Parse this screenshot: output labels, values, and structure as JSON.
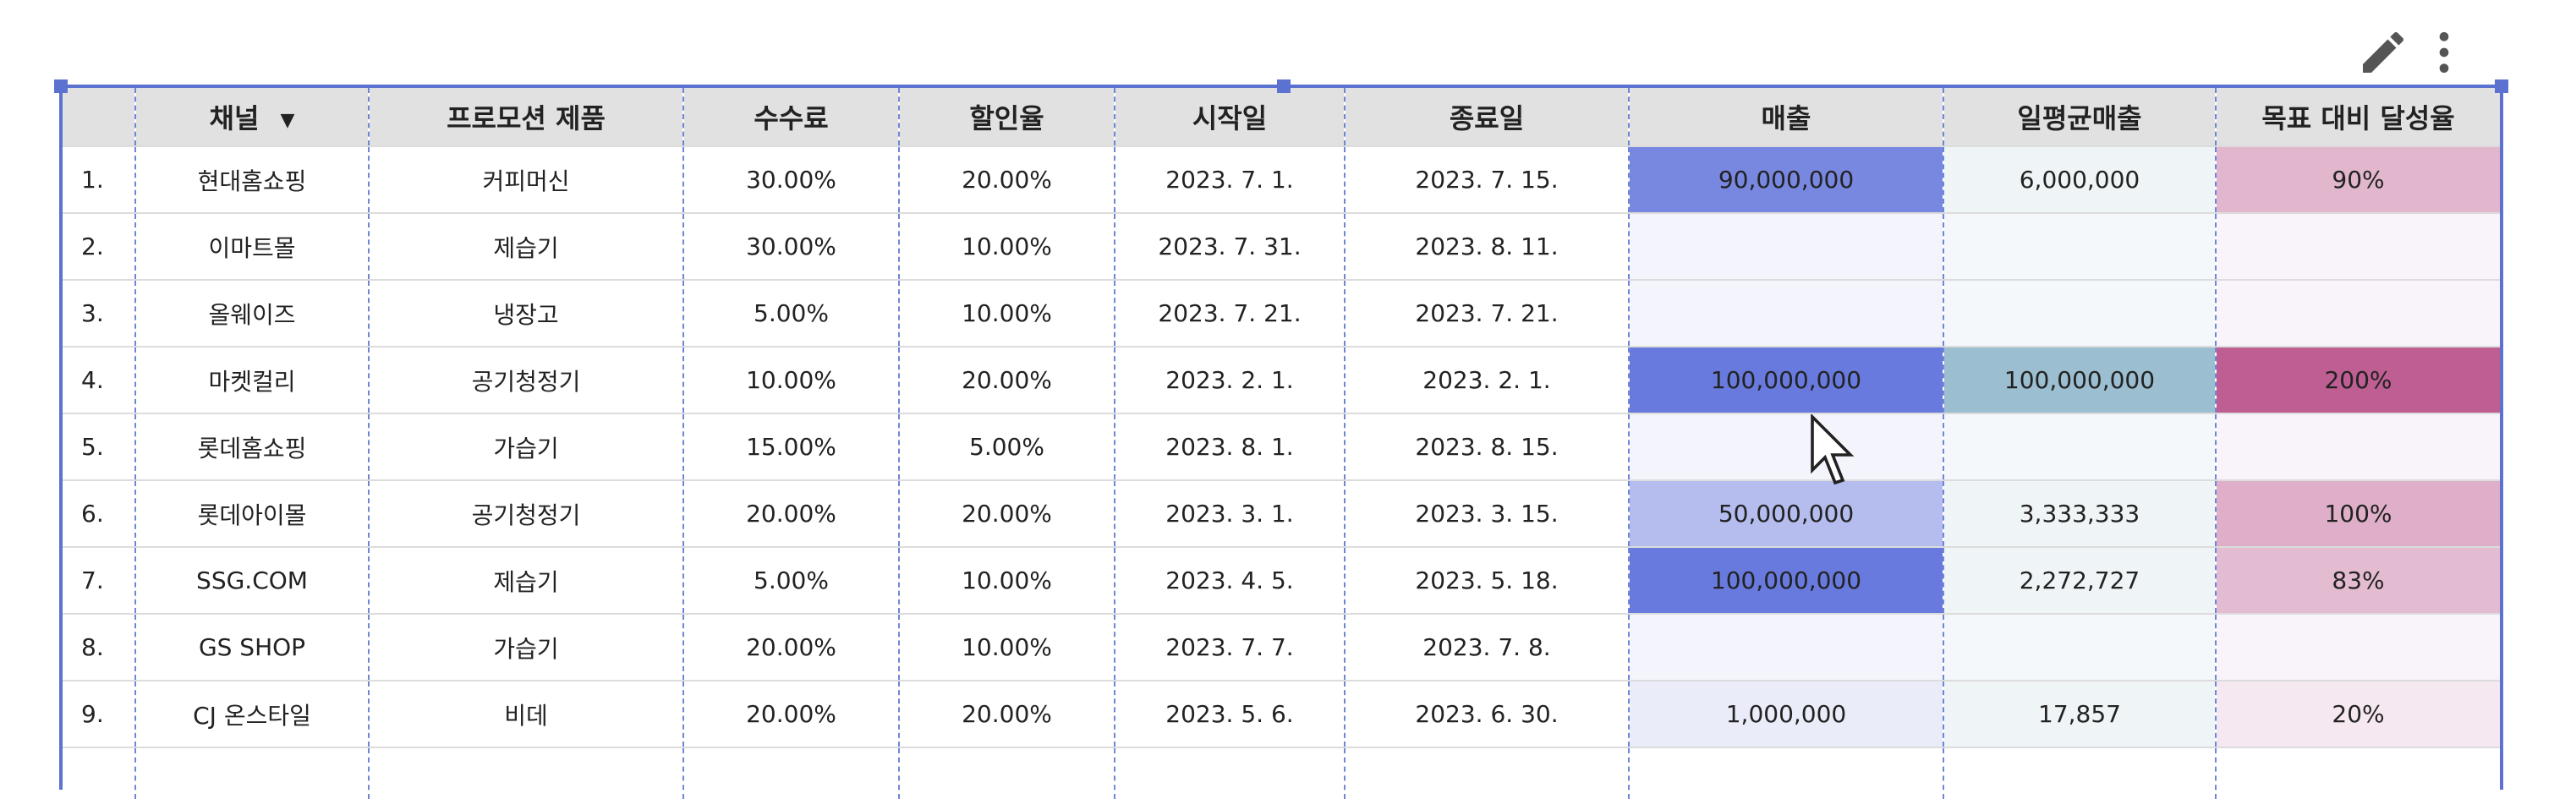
{
  "toolbar": {
    "edit_icon": "pencil-icon",
    "more_icon": "more-vert-icon"
  },
  "table": {
    "columns": [
      "",
      "채널",
      "프로모션 제품",
      "수수료",
      "할인율",
      "시작일",
      "종료일",
      "매출",
      "일평균매출",
      "목표 대비 달성율"
    ],
    "sort_indicator": "▼",
    "rows": [
      {
        "num": "1.",
        "cells": [
          "현대홈쇼핑",
          "커피머신",
          "30.00%",
          "20.00%",
          "2023. 7. 1.",
          "2023. 7. 15.",
          "90,000,000",
          "6,000,000",
          "90%"
        ],
        "heat": {
          "sales": 0.9,
          "daily": 0.06,
          "target": 0.45
        }
      },
      {
        "num": "2.",
        "cells": [
          "이마트몰",
          "제습기",
          "30.00%",
          "10.00%",
          "2023. 7. 31.",
          "2023. 8. 11.",
          "",
          "",
          ""
        ],
        "heat": {
          "sales": 0,
          "daily": 0,
          "target": 0
        }
      },
      {
        "num": "3.",
        "cells": [
          "올웨이즈",
          "냉장고",
          "5.00%",
          "10.00%",
          "2023. 7. 21.",
          "2023. 7. 21.",
          "",
          "",
          ""
        ],
        "heat": {
          "sales": 0,
          "daily": 0,
          "target": 0
        }
      },
      {
        "num": "4.",
        "cells": [
          "마켓컬리",
          "공기청정기",
          "10.00%",
          "20.00%",
          "2023. 2. 1.",
          "2023. 2. 1.",
          "100,000,000",
          "100,000,000",
          "200%"
        ],
        "heat": {
          "sales": 1,
          "daily": 1,
          "target": 1
        }
      },
      {
        "num": "5.",
        "cells": [
          "롯데홈쇼핑",
          "가습기",
          "15.00%",
          "5.00%",
          "2023. 8. 1.",
          "2023. 8. 15.",
          "",
          "",
          ""
        ],
        "heat": {
          "sales": 0,
          "daily": 0,
          "target": 0
        }
      },
      {
        "num": "6.",
        "cells": [
          "롯데아이몰",
          "공기청정기",
          "20.00%",
          "20.00%",
          "2023. 3. 1.",
          "2023. 3. 15.",
          "50,000,000",
          "3,333,333",
          "100%"
        ],
        "heat": {
          "sales": 0.5,
          "daily": 0.033,
          "target": 0.5
        }
      },
      {
        "num": "7.",
        "cells": [
          "SSG.COM",
          "제습기",
          "5.00%",
          "10.00%",
          "2023. 4. 5.",
          "2023. 5. 18.",
          "100,000,000",
          "2,272,727",
          "83%"
        ],
        "heat": {
          "sales": 1,
          "daily": 0.023,
          "target": 0.415
        }
      },
      {
        "num": "8.",
        "cells": [
          "GS SHOP",
          "가습기",
          "20.00%",
          "10.00%",
          "2023. 7. 7.",
          "2023. 7. 8.",
          "",
          "",
          ""
        ],
        "heat": {
          "sales": 0,
          "daily": 0,
          "target": 0
        }
      },
      {
        "num": "9.",
        "cells": [
          "CJ 온스타일",
          "비데",
          "20.00%",
          "20.00%",
          "2023. 5. 6.",
          "2023. 6. 30.",
          "1,000,000",
          "17,857",
          "20%"
        ],
        "heat": {
          "sales": 0.01,
          "daily": 0.0002,
          "target": 0.1
        }
      }
    ]
  },
  "colors": {
    "sales": "#4f63d8",
    "daily": "#7aa8c0",
    "target": "#b3427f",
    "empty_row_tint": "#f8f4fa"
  }
}
